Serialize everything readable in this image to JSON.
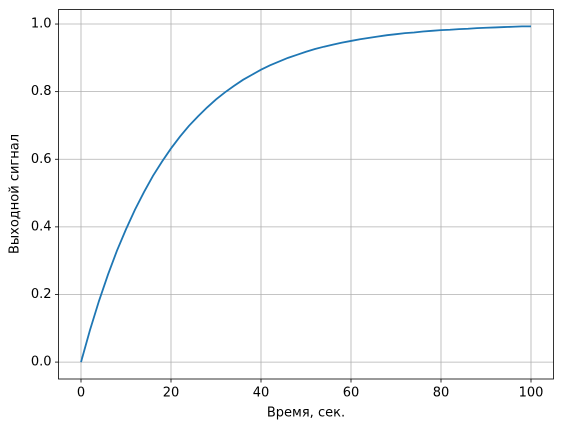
{
  "chart_data": {
    "type": "line",
    "xlabel": "Время, сек.",
    "ylabel": "Выходной сигнал",
    "x": [
      0,
      2,
      4,
      6,
      8,
      10,
      12,
      14,
      16,
      18,
      20,
      22,
      24,
      26,
      28,
      30,
      32,
      34,
      36,
      38,
      40,
      42,
      44,
      46,
      48,
      50,
      52,
      54,
      56,
      58,
      60,
      62,
      64,
      66,
      68,
      70,
      72,
      74,
      76,
      78,
      80,
      82,
      84,
      86,
      88,
      90,
      92,
      94,
      96,
      98,
      100
    ],
    "values": [
      0,
      0.095,
      0.181,
      0.259,
      0.33,
      0.393,
      0.451,
      0.503,
      0.551,
      0.593,
      0.632,
      0.667,
      0.699,
      0.727,
      0.753,
      0.777,
      0.798,
      0.817,
      0.835,
      0.85,
      0.865,
      0.878,
      0.889,
      0.9,
      0.909,
      0.918,
      0.926,
      0.933,
      0.939,
      0.945,
      0.95,
      0.955,
      0.959,
      0.963,
      0.967,
      0.97,
      0.973,
      0.975,
      0.978,
      0.98,
      0.982,
      0.983,
      0.985,
      0.986,
      0.988,
      0.989,
      0.99,
      0.991,
      0.992,
      0.993,
      0.993
    ],
    "color": "#1f77b4",
    "xlim": [
      -5,
      105
    ],
    "xticks": [
      0,
      20,
      40,
      60,
      80,
      100
    ],
    "ylim": [
      -0.05,
      1.043
    ],
    "yticks": [
      {
        "value": 0,
        "label": "0.0"
      },
      0.2,
      0.4,
      0.6,
      0.8,
      {
        "value": 1,
        "label": "1.0"
      }
    ],
    "grid": true
  }
}
